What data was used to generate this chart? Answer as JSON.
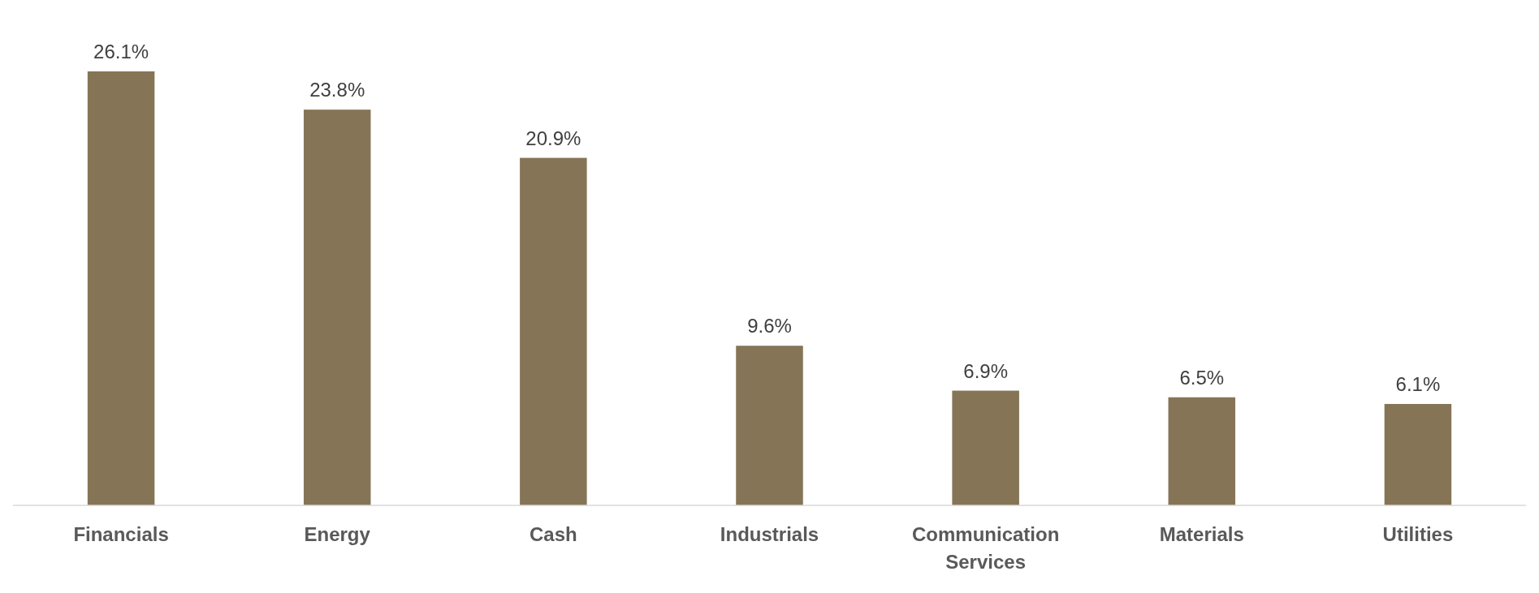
{
  "chart_data": {
    "type": "bar",
    "categories": [
      "Financials",
      "Energy",
      "Cash",
      "Industrials",
      "Communication Services",
      "Materials",
      "Utilities"
    ],
    "values": [
      26.1,
      23.8,
      20.9,
      9.6,
      6.9,
      6.5,
      6.1
    ],
    "value_labels": [
      "26.1%",
      "23.8%",
      "20.9%",
      "9.6%",
      "6.9%",
      "6.5%",
      "6.1%"
    ],
    "color": "#857556"
  }
}
